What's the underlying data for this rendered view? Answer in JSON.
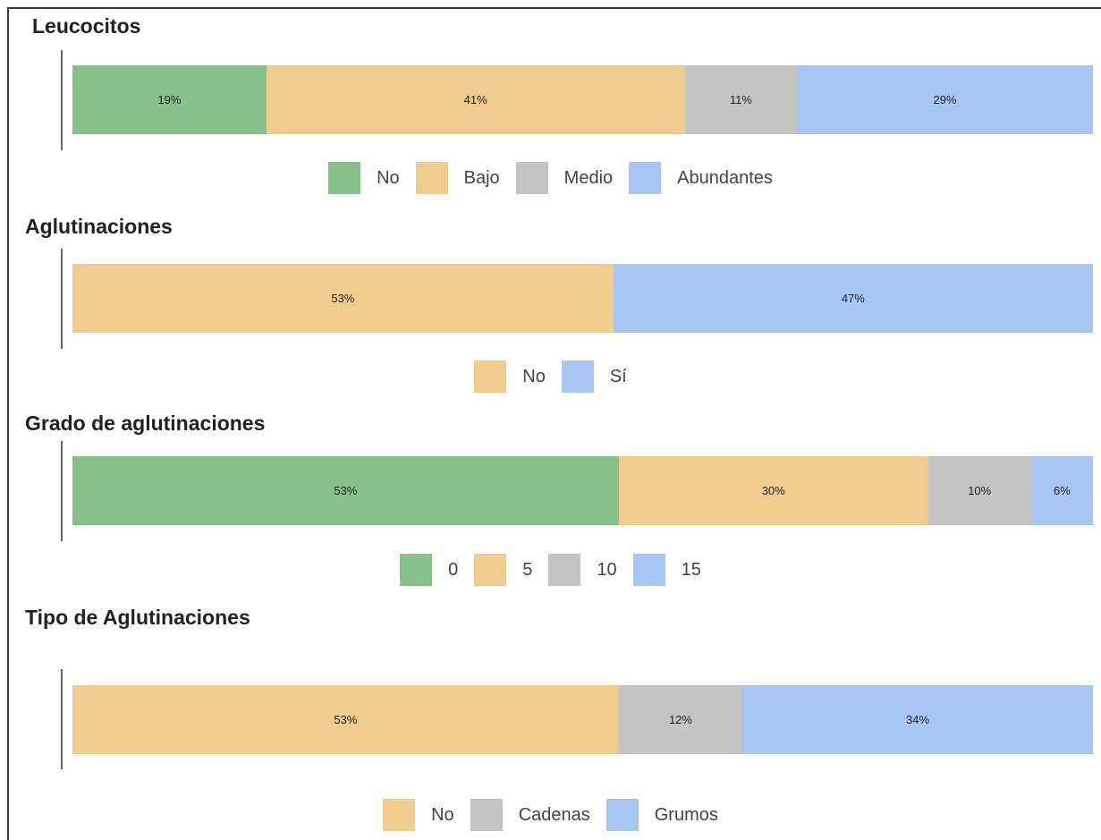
{
  "colors": {
    "green": "#85c188",
    "orange": "#f0cc8e",
    "gray": "#c4c4c4",
    "blue": "#a8c6f3"
  },
  "chart_data": [
    {
      "type": "bar",
      "orientation": "horizontal-stacked-100",
      "title": "Leucocitos",
      "series": [
        {
          "name": "No",
          "value": 19,
          "label": "19%",
          "color": "#85c188"
        },
        {
          "name": "Bajo",
          "value": 41,
          "label": "41%",
          "color": "#f0cc8e"
        },
        {
          "name": "Medio",
          "value": 11,
          "label": "11%",
          "color": "#c4c4c4"
        },
        {
          "name": "Abundantes",
          "value": 29,
          "label": "29%",
          "color": "#a8c6f3"
        }
      ],
      "legend_position": "bottom-center"
    },
    {
      "type": "bar",
      "orientation": "horizontal-stacked-100",
      "title": "Aglutinaciones",
      "series": [
        {
          "name": "No",
          "value": 53,
          "label": "53%",
          "color": "#f0cc8e"
        },
        {
          "name": "Sí",
          "value": 47,
          "label": "47%",
          "color": "#a8c6f3"
        }
      ],
      "legend_position": "bottom-center"
    },
    {
      "type": "bar",
      "orientation": "horizontal-stacked-100",
      "title": "Grado de aglutinaciones",
      "series": [
        {
          "name": "0",
          "value": 53,
          "label": "53%",
          "color": "#85c188"
        },
        {
          "name": "5",
          "value": 30,
          "label": "30%",
          "color": "#f0cc8e"
        },
        {
          "name": "10",
          "value": 10,
          "label": "10%",
          "color": "#c4c4c4"
        },
        {
          "name": "15",
          "value": 6,
          "label": "6%",
          "color": "#a8c6f3"
        }
      ],
      "legend_position": "bottom-center"
    },
    {
      "type": "bar",
      "orientation": "horizontal-stacked-100",
      "title": "Tipo de Aglutinaciones",
      "series": [
        {
          "name": "No",
          "value": 53,
          "label": "53%",
          "color": "#f0cc8e"
        },
        {
          "name": "Cadenas",
          "value": 12,
          "label": "12%",
          "color": "#c4c4c4"
        },
        {
          "name": "Grumos",
          "value": 34,
          "label": "34%",
          "color": "#a8c6f3"
        }
      ],
      "legend_position": "bottom-center"
    }
  ]
}
